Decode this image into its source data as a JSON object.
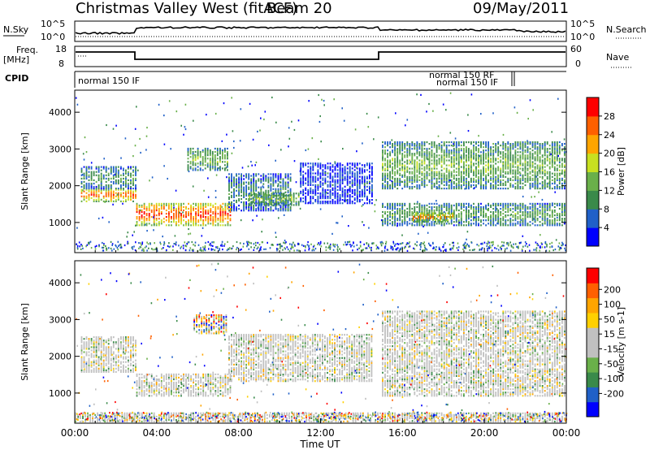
{
  "header": {
    "title": "Christmas Valley West (fitACF)",
    "beam": "Beam 20",
    "date": "09/May/2011"
  },
  "strips": {
    "nsky": {
      "label": "N.Sky",
      "ticks": [
        "10^5",
        "10^0"
      ],
      "right_ticks": [
        "10^5",
        "10^0"
      ],
      "right_label": "N.Search"
    },
    "freq": {
      "label_top": "Freq.",
      "label_bottom": "[MHz]",
      "ticks": [
        "18",
        "8"
      ],
      "right_ticks": [
        "60",
        "0"
      ],
      "right_label": "Nave"
    },
    "cpid": {
      "label": "CPID",
      "segments": [
        "normal 150 IF",
        "normal 150 RF",
        "normal 150 IF"
      ]
    }
  },
  "colors": {
    "power": [
      "#0000ff",
      "#2060c8",
      "#3a8a4a",
      "#6ab04a",
      "#c8e020",
      "#ffa500",
      "#ff6000",
      "#ff0000"
    ],
    "velocity": [
      "#0000ff",
      "#2060c8",
      "#3a8a4a",
      "#6ab04a",
      "#c0c0c0",
      "#c0c0c0",
      "#ffd000",
      "#ffa500",
      "#ff6000",
      "#ff0000"
    ]
  },
  "chart_data": [
    {
      "type": "heatmap",
      "name": "power",
      "xlabel": "Time UT",
      "ylabel": "Slant Range [km]",
      "xlim": [
        0,
        24
      ],
      "ylim": [
        180,
        4600
      ],
      "x_ticks": [
        "00:00",
        "04:00",
        "08:00",
        "12:00",
        "16:00",
        "20:00",
        "00:00"
      ],
      "y_ticks": [
        1000,
        2000,
        3000,
        4000
      ],
      "colorbar": {
        "label": "Power [dB]",
        "ticks": [
          4,
          8,
          12,
          16,
          20,
          24,
          28
        ],
        "range": [
          0,
          32
        ]
      },
      "bands": [
        {
          "t": [
            0.3,
            3.0
          ],
          "r": [
            1550,
            1900
          ],
          "level": 0.85
        },
        {
          "t": [
            0.3,
            3.0
          ],
          "r": [
            1900,
            2500
          ],
          "level": 0.35
        },
        {
          "t": [
            3.0,
            7.6
          ],
          "r": [
            900,
            1500
          ],
          "level": 0.9
        },
        {
          "t": [
            5.5,
            7.5
          ],
          "r": [
            2400,
            3000
          ],
          "level": 0.45
        },
        {
          "t": [
            7.5,
            10.5
          ],
          "r": [
            1300,
            2300
          ],
          "level": 0.3
        },
        {
          "t": [
            8.5,
            11.0
          ],
          "r": [
            1450,
            1800
          ],
          "level": 0.5
        },
        {
          "t": [
            11.0,
            14.5
          ],
          "r": [
            1500,
            2600
          ],
          "level": 0.15
        },
        {
          "t": [
            15.0,
            24.0
          ],
          "r": [
            1900,
            3200
          ],
          "level": 0.45
        },
        {
          "t": [
            15.0,
            24.0
          ],
          "r": [
            900,
            1500
          ],
          "level": 0.4
        },
        {
          "t": [
            16.5,
            18.5
          ],
          "r": [
            1000,
            1250
          ],
          "level": 0.8
        }
      ]
    },
    {
      "type": "heatmap",
      "name": "velocity",
      "xlabel": "Time UT",
      "ylabel": "Slant Range [km]",
      "xlim": [
        0,
        24
      ],
      "ylim": [
        180,
        4600
      ],
      "x_ticks": [
        "00:00",
        "04:00",
        "08:00",
        "12:00",
        "16:00",
        "20:00",
        "00:00"
      ],
      "y_ticks": [
        1000,
        2000,
        3000,
        4000
      ],
      "colorbar": {
        "label": "Velocity [m s-1]",
        "ticks": [
          "200",
          "100",
          "50",
          "15",
          "-15",
          "-50",
          "-100",
          "-200"
        ]
      },
      "bands": [
        {
          "t": [
            0.3,
            3.0
          ],
          "r": [
            1550,
            2500
          ],
          "level": 0.5
        },
        {
          "t": [
            3.0,
            7.6
          ],
          "r": [
            900,
            1500
          ],
          "level": 0.5
        },
        {
          "t": [
            5.8,
            7.4
          ],
          "r": [
            2600,
            3100
          ],
          "level": 0.1
        },
        {
          "t": [
            7.5,
            14.5
          ],
          "r": [
            1300,
            2600
          ],
          "level": 0.45
        },
        {
          "t": [
            15.0,
            24.0
          ],
          "r": [
            900,
            3200
          ],
          "level": 0.5
        },
        {
          "t": [
            0.0,
            24.0
          ],
          "r": [
            200,
            450
          ],
          "level": 0.3
        }
      ]
    }
  ],
  "axis": {
    "x_ticks": [
      "00:00",
      "04:00",
      "08:00",
      "12:00",
      "16:00",
      "20:00",
      "00:00"
    ],
    "xlabel": "Time UT"
  }
}
